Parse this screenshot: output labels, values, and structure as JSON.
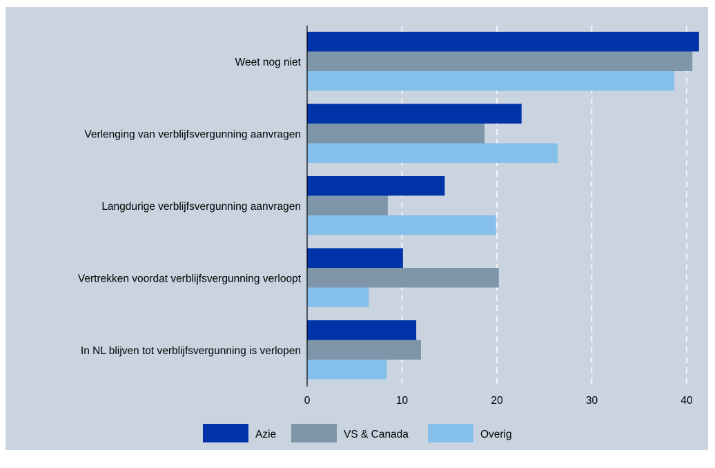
{
  "chart_data": {
    "type": "bar",
    "orientation": "horizontal",
    "categories": [
      "Weet nog niet",
      "Verlenging van verblijfsvergunning aanvragen",
      "Langdurige verblijfsvergunning aanvragen",
      "Vertrekken voordat verblijfsvergunning verloopt",
      "In NL blijven tot verblijfsvergunning is verlopen"
    ],
    "series": [
      {
        "name": "Azie",
        "color": "#0033a8",
        "values": [
          41.3,
          22.6,
          14.5,
          10.1,
          11.5
        ]
      },
      {
        "name": "VS & Canada",
        "color": "#7f95aa",
        "values": [
          40.6,
          18.7,
          8.5,
          20.2,
          12.0
        ]
      },
      {
        "name": "Overig",
        "color": "#84c0ea",
        "values": [
          38.7,
          26.4,
          19.9,
          6.5,
          8.4
        ]
      }
    ],
    "xticks": [
      "0",
      "10",
      "20",
      "30",
      "40"
    ],
    "xlim": [
      0,
      41.5
    ],
    "title": "",
    "xlabel": "",
    "ylabel": "",
    "grid": "vertical dashed",
    "legend_position": "bottom",
    "background_color": "#c9d4e0"
  }
}
